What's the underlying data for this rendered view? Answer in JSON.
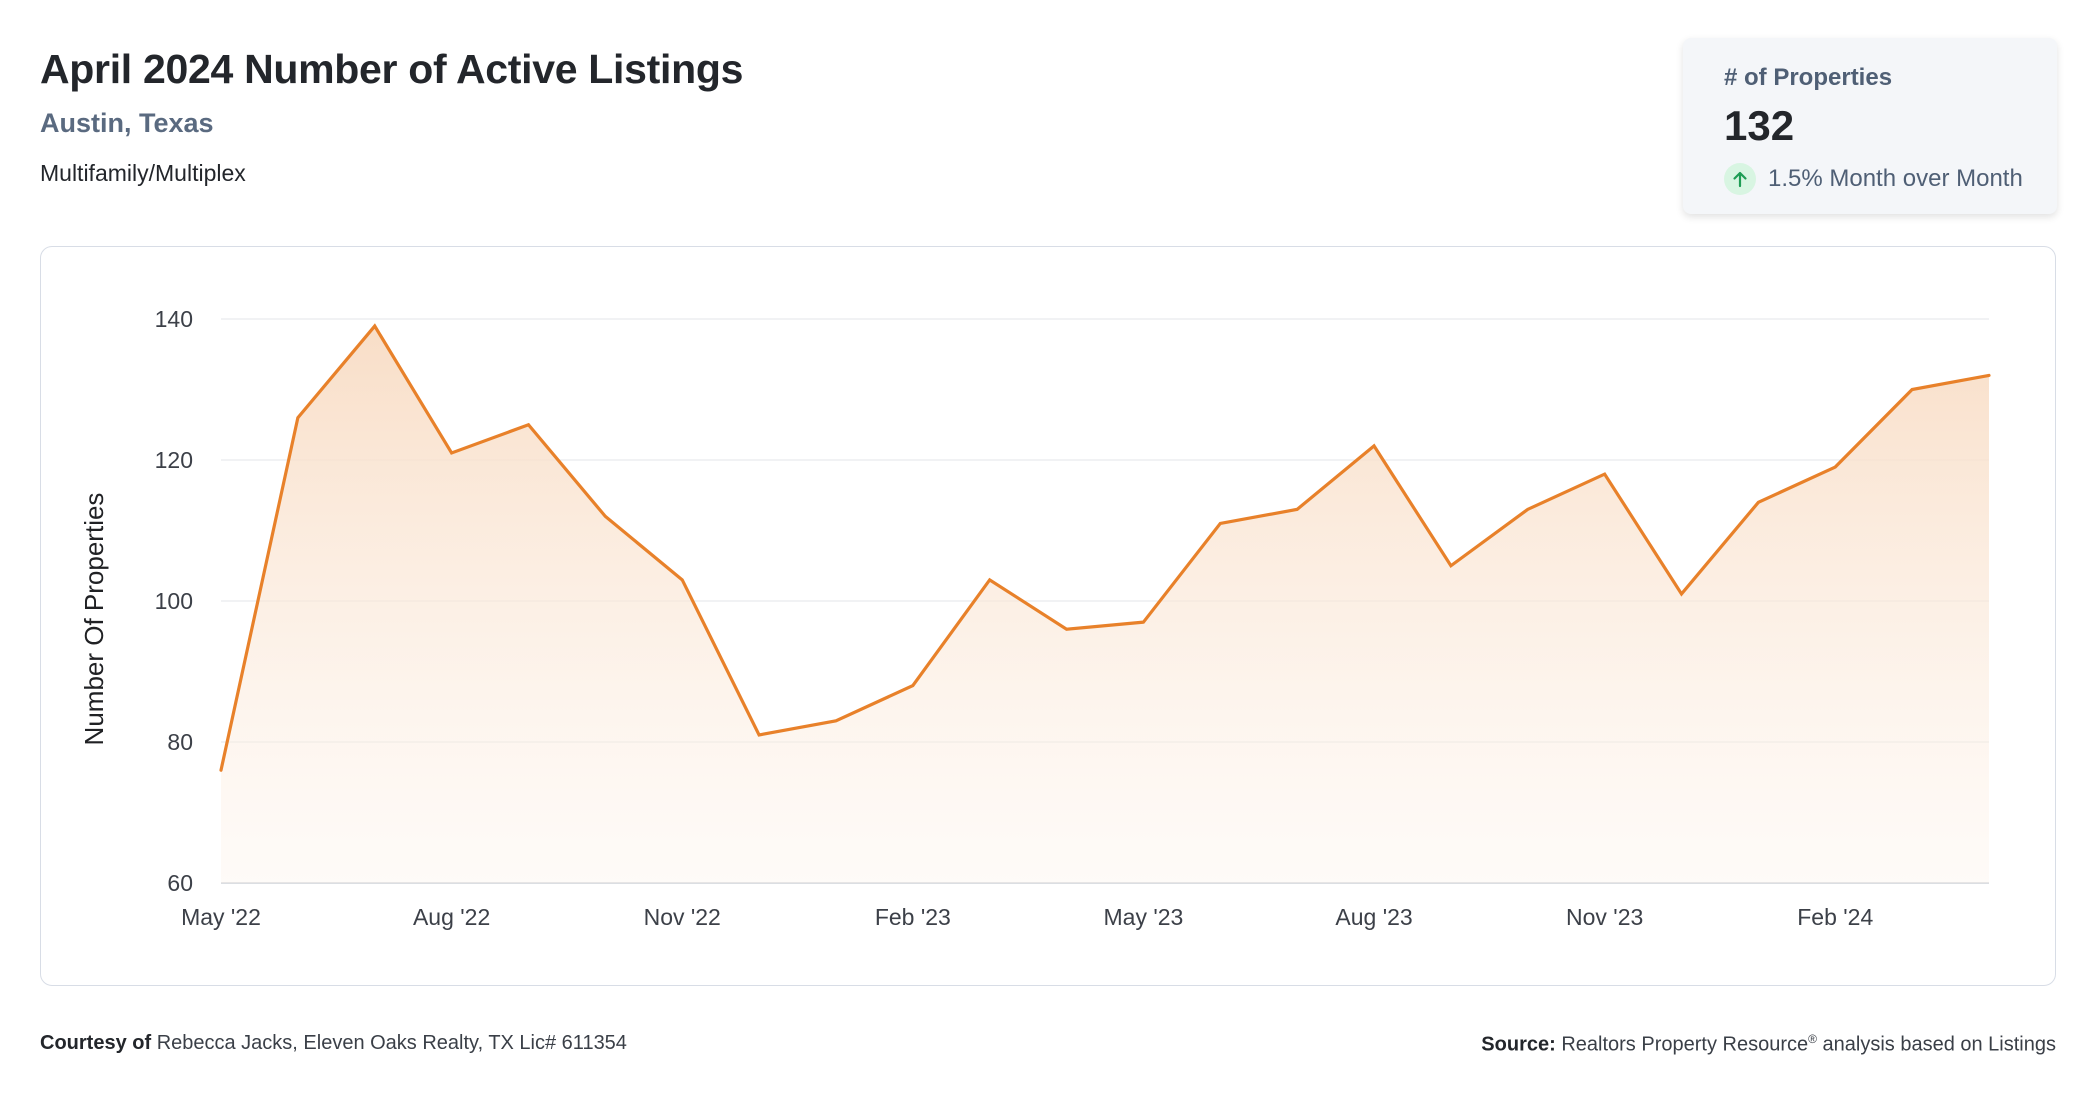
{
  "header": {
    "title": "April 2024 Number of Active Listings",
    "location": "Austin, Texas",
    "category": "Multifamily/Multiplex"
  },
  "kpi": {
    "label": "# of Properties",
    "value": "132",
    "change": "1.5% Month over Month",
    "change_direction": "up",
    "icon": "arrow-up-icon"
  },
  "colors": {
    "line": "#e8812a",
    "fill_top": "#f8dcc4",
    "grid": "#e3e5e9",
    "kpi_arrow": "#1f9d55"
  },
  "chart_data": {
    "type": "area",
    "title": "",
    "xlabel": "",
    "ylabel": "Number Of Properties",
    "x": [
      "May '22",
      "Jun '22",
      "Jul '22",
      "Aug '22",
      "Sep '22",
      "Oct '22",
      "Nov '22",
      "Dec '22",
      "Jan '23",
      "Feb '23",
      "Mar '23",
      "Apr '23",
      "May '23",
      "Jun '23",
      "Jul '23",
      "Aug '23",
      "Sep '23",
      "Oct '23",
      "Nov '23",
      "Dec '23",
      "Jan '24",
      "Feb '24",
      "Mar '24",
      "Apr '24"
    ],
    "series": [
      {
        "values": [
          76,
          126,
          139,
          121,
          125,
          112,
          103,
          81,
          83,
          88,
          103,
          96,
          97,
          111,
          113,
          122,
          105,
          113,
          118,
          101,
          114,
          119,
          130,
          132
        ]
      }
    ],
    "x_tick_labels": [
      "May '22",
      "Aug '22",
      "Nov '22",
      "Feb '23",
      "May '23",
      "Aug '23",
      "Nov '23",
      "Feb '24"
    ],
    "y_ticks": [
      60,
      80,
      100,
      120,
      140
    ],
    "ylim": [
      60,
      140
    ],
    "grid": true,
    "legend": "none"
  },
  "footer": {
    "courtesy_label": "Courtesy of",
    "courtesy_text": "Rebecca Jacks, Eleven Oaks Realty, TX Lic# 611354",
    "source_label": "Source:",
    "source_text_1": "Realtors Property Resource",
    "source_sup": "®",
    "source_text_2": "analysis based on Listings"
  }
}
